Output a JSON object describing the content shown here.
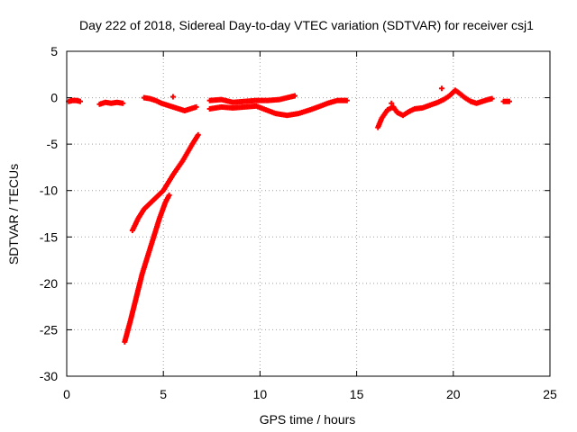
{
  "chart_data": {
    "type": "scatter",
    "title": "Day 222 of 2018, Sidereal Day-to-day VTEC variation (SDTVAR) for receiver csj1",
    "xlabel": "GPS time / hours",
    "ylabel": "SDTVAR / TECUs",
    "xlim": [
      0,
      25
    ],
    "ylim": [
      -30,
      5
    ],
    "xticks": [
      "0",
      "5",
      "10",
      "15",
      "20",
      "25"
    ],
    "yticks": [
      "5",
      "0",
      "-5",
      "-10",
      "-15",
      "-20",
      "-25",
      "-30"
    ],
    "grid": true,
    "color": "#ff0000",
    "marker": "plus",
    "series": [
      {
        "points": [
          [
            0.1,
            -0.4
          ],
          [
            0.3,
            -0.3
          ],
          [
            0.5,
            -0.3
          ],
          [
            0.7,
            -0.4
          ]
        ]
      },
      {
        "points": [
          [
            1.7,
            -0.7
          ],
          [
            2.0,
            -0.5
          ],
          [
            2.3,
            -0.6
          ],
          [
            2.6,
            -0.5
          ],
          [
            2.9,
            -0.6
          ]
        ]
      },
      {
        "points": [
          [
            4.0,
            0.0
          ],
          [
            4.3,
            -0.1
          ],
          [
            4.6,
            -0.3
          ],
          [
            4.9,
            -0.6
          ],
          [
            5.2,
            -0.8
          ],
          [
            5.5,
            -1.0
          ],
          [
            5.8,
            -1.2
          ],
          [
            6.1,
            -1.4
          ],
          [
            6.4,
            -1.2
          ],
          [
            6.7,
            -1.0
          ]
        ]
      },
      {
        "points": [
          [
            5.5,
            0.1
          ]
        ]
      },
      {
        "points": [
          [
            7.4,
            -0.3
          ],
          [
            8.0,
            -0.2
          ],
          [
            8.6,
            -0.5
          ],
          [
            9.2,
            -0.4
          ],
          [
            9.8,
            -0.3
          ],
          [
            10.4,
            -0.3
          ],
          [
            11.0,
            -0.2
          ],
          [
            11.6,
            0.1
          ],
          [
            11.8,
            0.2
          ]
        ]
      },
      {
        "points": [
          [
            7.4,
            -1.2
          ],
          [
            8.0,
            -1.0
          ],
          [
            8.6,
            -1.1
          ],
          [
            9.2,
            -1.0
          ],
          [
            9.8,
            -0.9
          ],
          [
            10.3,
            -1.3
          ],
          [
            10.8,
            -1.7
          ],
          [
            11.4,
            -1.9
          ],
          [
            12.0,
            -1.7
          ],
          [
            12.6,
            -1.3
          ],
          [
            13.0,
            -1.0
          ],
          [
            13.5,
            -0.6
          ],
          [
            14.0,
            -0.3
          ],
          [
            14.5,
            -0.3
          ]
        ]
      },
      {
        "points": [
          [
            3.4,
            -14.3
          ],
          [
            3.7,
            -13.0
          ],
          [
            4.0,
            -12.0
          ],
          [
            4.5,
            -11.0
          ],
          [
            5.0,
            -10.0
          ],
          [
            5.5,
            -8.3
          ],
          [
            6.0,
            -6.8
          ],
          [
            6.5,
            -5.0
          ],
          [
            6.8,
            -4.0
          ]
        ]
      },
      {
        "points": [
          [
            3.0,
            -26.3
          ],
          [
            3.3,
            -24.0
          ],
          [
            3.6,
            -21.5
          ],
          [
            3.9,
            -19.0
          ],
          [
            4.2,
            -17.0
          ],
          [
            4.5,
            -15.0
          ],
          [
            4.8,
            -13.0
          ],
          [
            5.1,
            -11.3
          ],
          [
            5.3,
            -10.5
          ]
        ]
      },
      {
        "points": [
          [
            16.1,
            -3.2
          ],
          [
            16.3,
            -2.2
          ],
          [
            16.6,
            -1.3
          ],
          [
            16.9,
            -1.0
          ],
          [
            17.1,
            -1.6
          ],
          [
            17.4,
            -1.9
          ],
          [
            17.7,
            -1.5
          ],
          [
            18.0,
            -1.2
          ],
          [
            18.4,
            -1.1
          ],
          [
            18.8,
            -0.8
          ],
          [
            19.2,
            -0.5
          ],
          [
            19.5,
            -0.2
          ],
          [
            19.8,
            0.2
          ],
          [
            20.1,
            0.8
          ],
          [
            20.3,
            0.5
          ],
          [
            20.6,
            0.0
          ],
          [
            20.9,
            -0.4
          ],
          [
            21.2,
            -0.6
          ],
          [
            21.5,
            -0.4
          ],
          [
            21.8,
            -0.2
          ],
          [
            22.0,
            -0.1
          ]
        ]
      },
      {
        "points": [
          [
            16.8,
            -0.6
          ]
        ]
      },
      {
        "points": [
          [
            19.4,
            1.0
          ]
        ]
      },
      {
        "points": [
          [
            22.6,
            -0.4
          ],
          [
            22.9,
            -0.4
          ]
        ]
      }
    ]
  }
}
